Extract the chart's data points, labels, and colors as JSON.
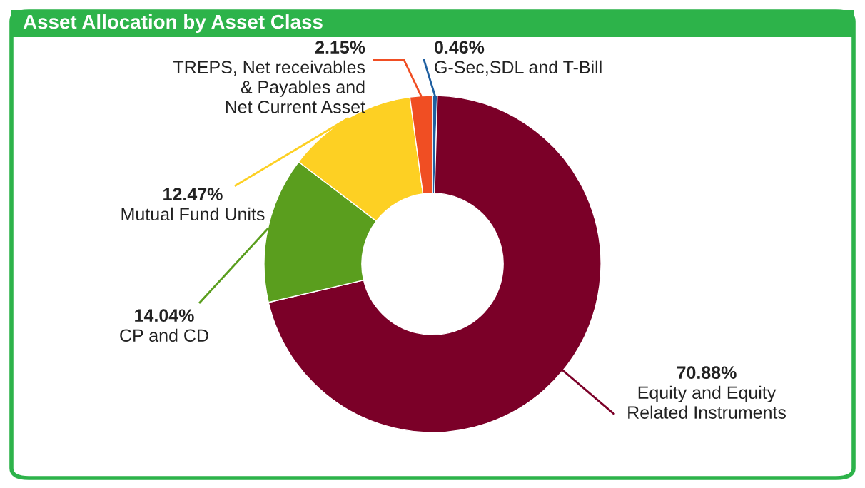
{
  "chart_data": {
    "type": "donut",
    "title": "Asset Allocation by Asset Class",
    "categories": [
      "G-Sec,SDL and T-Bill",
      "Equity and Equity\nRelated Instruments",
      "CP and CD",
      "Mutual Fund Units",
      "TREPS, Net receivables\n& Payables and\nNet Current Asset"
    ],
    "values": [
      0.46,
      70.88,
      14.04,
      12.47,
      2.15
    ],
    "colors": [
      "#1f5fa0",
      "#7b0028",
      "#5a9e1e",
      "#fdd023",
      "#f04e23"
    ],
    "value_labels": [
      "0.46%",
      "70.88%",
      "14.04%",
      "12.47%",
      "2.15%"
    ],
    "legend": false
  }
}
